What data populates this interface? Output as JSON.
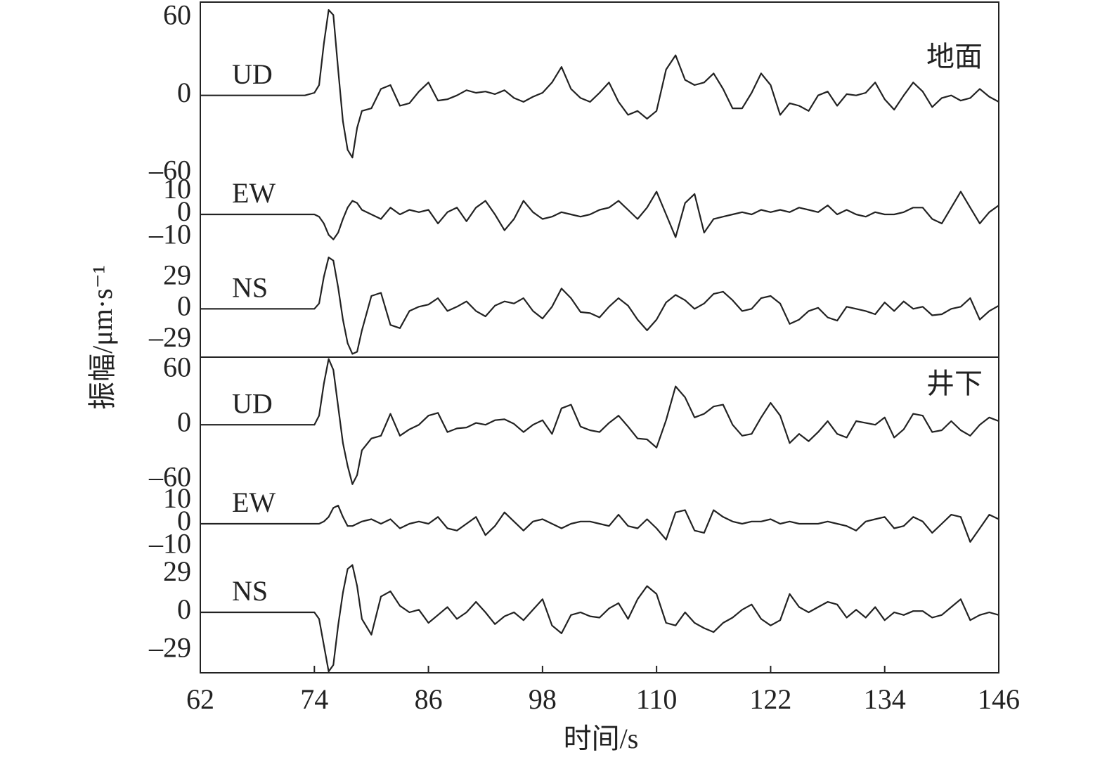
{
  "chart_data": {
    "type": "line",
    "xlabel": "时间/s",
    "ylabel": "振幅/μm·s⁻¹",
    "xlim": [
      62,
      146
    ],
    "xticks": [
      62,
      74,
      86,
      98,
      110,
      122,
      134,
      146
    ],
    "x": [
      62,
      64,
      66,
      68,
      70,
      72,
      73,
      74,
      74.5,
      75,
      75.5,
      76,
      76.5,
      77,
      77.5,
      78,
      78.5,
      79,
      80,
      81,
      82,
      83,
      84,
      85,
      86,
      87,
      88,
      89,
      90,
      91,
      92,
      93,
      94,
      95,
      96,
      97,
      98,
      99,
      100,
      101,
      102,
      103,
      104,
      105,
      106,
      107,
      108,
      109,
      110,
      111,
      112,
      113,
      114,
      115,
      116,
      117,
      118,
      119,
      120,
      121,
      122,
      123,
      124,
      125,
      126,
      127,
      128,
      129,
      130,
      131,
      132,
      133,
      134,
      135,
      136,
      137,
      138,
      139,
      140,
      141,
      142,
      143,
      144,
      145,
      146
    ],
    "panels": [
      {
        "label": "地面",
        "series": [
          {
            "name": "UD",
            "color": "#222222",
            "ylim": [
              -62,
              72
            ],
            "yticks": [
              {
                "value": 60,
                "label": "60"
              },
              0,
              {
                "value": -60,
                "label": "–60"
              }
            ],
            "values": [
              0,
              0,
              0,
              0,
              0,
              0,
              0,
              2,
              8,
              40,
              66,
              62,
              20,
              -20,
              -42,
              -48,
              -25,
              -12,
              -10,
              5,
              8,
              -8,
              -6,
              3,
              10,
              -4,
              -3,
              0,
              4,
              2,
              3,
              1,
              4,
              -2,
              -5,
              -1,
              2,
              10,
              22,
              5,
              -2,
              -5,
              2,
              10,
              -5,
              -15,
              -12,
              -18,
              -12,
              20,
              31,
              12,
              8,
              10,
              17,
              5,
              -10,
              -10,
              2,
              17,
              8,
              -15,
              -6,
              -8,
              -12,
              0,
              3,
              -8,
              1,
              0,
              2,
              10,
              -3,
              -11,
              0,
              10,
              3,
              -9,
              -2,
              0,
              -4,
              -2,
              5,
              -1,
              -5
            ]
          },
          {
            "name": "EW",
            "color": "#222222",
            "ylim": [
              -17,
              17
            ],
            "yticks": [
              10,
              0,
              {
                "value": -10,
                "label": "–10"
              }
            ],
            "values": [
              0,
              0,
              0,
              0,
              0,
              0,
              0,
              0,
              -1,
              -4,
              -9,
              -11,
              -8,
              -2,
              3,
              6,
              5,
              2,
              0,
              -2,
              3,
              0,
              2,
              1,
              2,
              -4,
              1,
              3,
              -3,
              3,
              6,
              0,
              -7,
              -2,
              6,
              1,
              -2,
              -1,
              1,
              0,
              -1,
              0,
              2,
              3,
              6,
              2,
              -2,
              3,
              10,
              0,
              -10,
              5,
              9,
              -8,
              -2,
              -1,
              0,
              1,
              0,
              2,
              1,
              2,
              1,
              3,
              2,
              1,
              4,
              0,
              2,
              0,
              -1,
              1,
              0,
              0,
              1,
              3,
              3,
              -2,
              -4,
              3,
              10,
              3,
              -4,
              1,
              4
            ]
          },
          {
            "name": "NS",
            "color": "#222222",
            "ylim": [
              -45,
              52
            ],
            "yticks": [
              29,
              0,
              {
                "value": -29,
                "label": "–29"
              }
            ],
            "values": [
              0,
              0,
              0,
              0,
              0,
              0,
              0,
              0,
              5,
              30,
              48,
              45,
              20,
              -10,
              -32,
              -42,
              -40,
              -20,
              12,
              15,
              -15,
              -18,
              -2,
              2,
              4,
              10,
              -2,
              2,
              7,
              -2,
              -7,
              3,
              7,
              5,
              10,
              -2,
              -9,
              2,
              19,
              10,
              -3,
              -4,
              -8,
              2,
              10,
              3,
              -10,
              -20,
              -10,
              6,
              13,
              8,
              0,
              5,
              14,
              16,
              8,
              -2,
              0,
              10,
              12,
              5,
              -14,
              -10,
              -2,
              1,
              -8,
              -11,
              2,
              0,
              -2,
              -5,
              6,
              -2,
              7,
              0,
              2,
              -6,
              -5,
              0,
              2,
              10,
              -10,
              -2,
              3
            ]
          }
        ]
      },
      {
        "label": "井下",
        "series": [
          {
            "name": "UD",
            "color": "#222222",
            "ylim": [
              -66,
              74
            ],
            "yticks": [
              60,
              0,
              {
                "value": -60,
                "label": "–60"
              }
            ],
            "values": [
              0,
              0,
              0,
              0,
              0,
              0,
              0,
              0,
              10,
              45,
              72,
              60,
              20,
              -20,
              -45,
              -65,
              -55,
              -28,
              -15,
              -12,
              12,
              -12,
              -5,
              0,
              10,
              13,
              -8,
              -4,
              -3,
              2,
              0,
              5,
              6,
              1,
              -8,
              0,
              5,
              -10,
              18,
              22,
              -2,
              -6,
              -8,
              2,
              10,
              -2,
              -15,
              -16,
              -25,
              5,
              42,
              30,
              8,
              12,
              20,
              22,
              0,
              -12,
              -10,
              8,
              24,
              10,
              -20,
              -10,
              -18,
              -8,
              4,
              -10,
              -14,
              4,
              2,
              0,
              8,
              -14,
              -5,
              12,
              10,
              -8,
              -6,
              4,
              -6,
              -12,
              0,
              8,
              4
            ]
          },
          {
            "name": "EW",
            "color": "#222222",
            "ylim": [
              -17,
              17
            ],
            "yticks": [
              10,
              0,
              {
                "value": -10,
                "label": "–10"
              }
            ],
            "values": [
              0,
              0,
              0,
              0,
              0,
              0,
              0,
              0,
              0,
              1,
              3,
              7,
              8,
              3,
              -1,
              -1,
              0,
              1,
              2,
              0,
              2,
              -2,
              0,
              1,
              0,
              3,
              -2,
              -3,
              0,
              3,
              -5,
              -1,
              5,
              1,
              -3,
              1,
              2,
              0,
              -2,
              0,
              1,
              1,
              0,
              -1,
              4,
              -1,
              -2,
              2,
              -2,
              -7,
              5,
              6,
              -3,
              -4,
              6,
              3,
              1,
              0,
              1,
              1,
              2,
              0,
              1,
              0,
              0,
              0,
              1,
              0,
              -1,
              -3,
              1,
              2,
              3,
              -2,
              -1,
              3,
              1,
              -4,
              0,
              4,
              3,
              -8,
              -2,
              4,
              2
            ]
          },
          {
            "name": "NS",
            "color": "#222222",
            "ylim": [
              -46,
              38
            ],
            "yticks": [
              29,
              0,
              {
                "value": -29,
                "label": "–29"
              }
            ],
            "values": [
              0,
              0,
              0,
              0,
              0,
              0,
              0,
              0,
              -5,
              -25,
              -45,
              -40,
              -10,
              15,
              33,
              36,
              20,
              -5,
              -17,
              12,
              16,
              5,
              0,
              2,
              -8,
              -2,
              4,
              -5,
              0,
              8,
              0,
              -9,
              -3,
              0,
              -6,
              2,
              10,
              -10,
              -16,
              -2,
              0,
              -3,
              -4,
              3,
              7,
              -5,
              10,
              20,
              14,
              -8,
              -10,
              0,
              -8,
              -12,
              -15,
              -8,
              -4,
              2,
              6,
              -5,
              -10,
              -6,
              14,
              4,
              0,
              4,
              8,
              6,
              -4,
              2,
              -4,
              4,
              -6,
              0,
              -2,
              1,
              1,
              -4,
              -2,
              4,
              10,
              -6,
              -2,
              0,
              -2
            ]
          }
        ]
      }
    ]
  }
}
